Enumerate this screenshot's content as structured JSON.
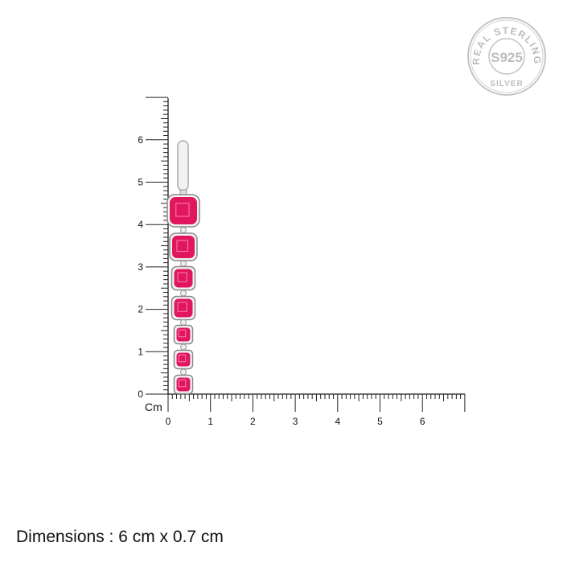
{
  "badge": {
    "top_text": "REAL STERLING",
    "center_text": "S925",
    "bottom_text": "SILVER"
  },
  "ruler": {
    "unit_label": "Cm",
    "vertical_ticks": [
      "0",
      "1",
      "2",
      "3",
      "4",
      "5",
      "6"
    ],
    "horizontal_ticks": [
      "0",
      "1",
      "2",
      "3",
      "4",
      "5",
      "6"
    ]
  },
  "product": {
    "stone_color": "#e0175f",
    "metal_color": "#c8c8c8",
    "stone_count": 7
  },
  "dimensions_text": "Dimensions : 6 cm x 0.7 cm"
}
